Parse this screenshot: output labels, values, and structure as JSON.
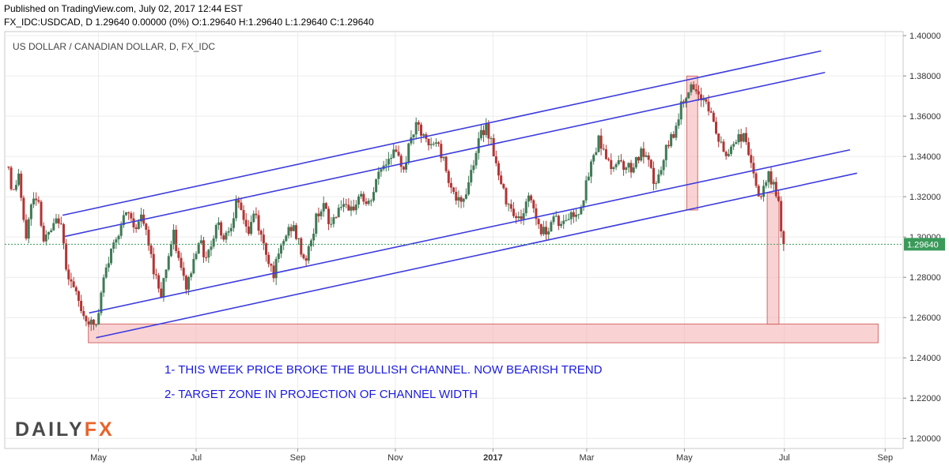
{
  "header": {
    "published": "Published on TradingView.com, July 02, 2017 12:44 EST",
    "quote": "FX_IDC:USDCAD, D  1.29640 0.00000 (0%) O:1.29640 H:1.29640 L:1.29640 C:1.29640"
  },
  "logo": {
    "part1": "DAILY",
    "part2": "FX"
  },
  "colors": {
    "bull": "#3f7a56",
    "bear": "#b23535",
    "channel": "#3d3ce0",
    "zone_fill": "#f5b5b5",
    "zone_stroke": "#d46a6a",
    "annotation": "#1a1adf",
    "last_price_bg": "#3a9a5a",
    "price_line": "#3a9a5a"
  },
  "chart_data": {
    "type": "candlestick",
    "title": "US DOLLAR / CANADIAN DOLLAR, D, FX_IDC",
    "ylim": [
      1.195,
      1.402
    ],
    "y_ticks": [
      "1.20000",
      "1.22000",
      "1.24000",
      "1.26000",
      "1.28000",
      "1.30000",
      "1.32000",
      "1.34000",
      "1.36000",
      "1.38000",
      "1.40000"
    ],
    "x_ticks": [
      {
        "label": "May",
        "day": 120
      },
      {
        "label": "Jul",
        "day": 245
      },
      {
        "label": "Sep",
        "day": 375
      },
      {
        "label": "Nov",
        "day": 500
      },
      {
        "label": "2017",
        "day": 625
      },
      {
        "label": "Mar",
        "day": 745
      },
      {
        "label": "May",
        "day": 870
      },
      {
        "label": "Jul",
        "day": 998
      },
      {
        "label": "Sep",
        "day": 1127
      }
    ],
    "last_price": 1.2964,
    "last_price_label": "1.29640",
    "price_anchors": [
      [
        5,
        1.335
      ],
      [
        10,
        1.32
      ],
      [
        18,
        1.332
      ],
      [
        26,
        1.298
      ],
      [
        34,
        1.316
      ],
      [
        42,
        1.322
      ],
      [
        50,
        1.298
      ],
      [
        60,
        1.303
      ],
      [
        70,
        1.31
      ],
      [
        80,
        1.283
      ],
      [
        90,
        1.272
      ],
      [
        100,
        1.262
      ],
      [
        110,
        1.257
      ],
      [
        118,
        1.256
      ],
      [
        126,
        1.278
      ],
      [
        134,
        1.29
      ],
      [
        142,
        1.3
      ],
      [
        150,
        1.307
      ],
      [
        158,
        1.312
      ],
      [
        166,
        1.305
      ],
      [
        176,
        1.31
      ],
      [
        184,
        1.296
      ],
      [
        192,
        1.282
      ],
      [
        200,
        1.272
      ],
      [
        208,
        1.288
      ],
      [
        216,
        1.301
      ],
      [
        224,
        1.286
      ],
      [
        232,
        1.275
      ],
      [
        240,
        1.285
      ],
      [
        248,
        1.3
      ],
      [
        256,
        1.29
      ],
      [
        264,
        1.296
      ],
      [
        272,
        1.308
      ],
      [
        280,
        1.3
      ],
      [
        288,
        1.305
      ],
      [
        296,
        1.316
      ],
      [
        304,
        1.312
      ],
      [
        312,
        1.302
      ],
      [
        320,
        1.313
      ],
      [
        328,
        1.3
      ],
      [
        336,
        1.291
      ],
      [
        344,
        1.282
      ],
      [
        352,
        1.292
      ],
      [
        360,
        1.301
      ],
      [
        368,
        1.306
      ],
      [
        376,
        1.297
      ],
      [
        384,
        1.288
      ],
      [
        392,
        1.297
      ],
      [
        400,
        1.312
      ],
      [
        408,
        1.316
      ],
      [
        416,
        1.305
      ],
      [
        424,
        1.312
      ],
      [
        432,
        1.318
      ],
      [
        440,
        1.31
      ],
      [
        448,
        1.316
      ],
      [
        456,
        1.322
      ],
      [
        464,
        1.314
      ],
      [
        472,
        1.322
      ],
      [
        480,
        1.334
      ],
      [
        488,
        1.337
      ],
      [
        496,
        1.343
      ],
      [
        504,
        1.338
      ],
      [
        512,
        1.335
      ],
      [
        520,
        1.35
      ],
      [
        528,
        1.355
      ],
      [
        536,
        1.349
      ],
      [
        544,
        1.344
      ],
      [
        552,
        1.348
      ],
      [
        560,
        1.34
      ],
      [
        568,
        1.33
      ],
      [
        576,
        1.32
      ],
      [
        584,
        1.315
      ],
      [
        592,
        1.325
      ],
      [
        600,
        1.338
      ],
      [
        608,
        1.349
      ],
      [
        616,
        1.356
      ],
      [
        624,
        1.346
      ],
      [
        632,
        1.33
      ],
      [
        640,
        1.32
      ],
      [
        648,
        1.316
      ],
      [
        656,
        1.308
      ],
      [
        664,
        1.312
      ],
      [
        672,
        1.322
      ],
      [
        680,
        1.31
      ],
      [
        688,
        1.302
      ],
      [
        696,
        1.305
      ],
      [
        704,
        1.312
      ],
      [
        712,
        1.305
      ],
      [
        720,
        1.31
      ],
      [
        728,
        1.311
      ],
      [
        736,
        1.314
      ],
      [
        744,
        1.325
      ],
      [
        752,
        1.338
      ],
      [
        760,
        1.349
      ],
      [
        768,
        1.343
      ],
      [
        776,
        1.332
      ],
      [
        784,
        1.34
      ],
      [
        792,
        1.336
      ],
      [
        800,
        1.334
      ],
      [
        808,
        1.338
      ],
      [
        816,
        1.342
      ],
      [
        824,
        1.336
      ],
      [
        832,
        1.326
      ],
      [
        840,
        1.332
      ],
      [
        848,
        1.345
      ],
      [
        856,
        1.352
      ],
      [
        864,
        1.362
      ],
      [
        870,
        1.37
      ],
      [
        876,
        1.374
      ],
      [
        882,
        1.372
      ],
      [
        888,
        1.368
      ],
      [
        894,
        1.37
      ],
      [
        900,
        1.366
      ],
      [
        906,
        1.358
      ],
      [
        912,
        1.35
      ],
      [
        918,
        1.344
      ],
      [
        924,
        1.34
      ],
      [
        932,
        1.347
      ],
      [
        940,
        1.35
      ],
      [
        948,
        1.349
      ],
      [
        954,
        1.34
      ],
      [
        960,
        1.326
      ],
      [
        966,
        1.32
      ],
      [
        972,
        1.323
      ],
      [
        978,
        1.33
      ],
      [
        984,
        1.326
      ],
      [
        990,
        1.32
      ],
      [
        994,
        1.3
      ],
      [
        998,
        1.2964
      ]
    ],
    "channel_lines": [
      {
        "name": "outer-upper",
        "from": [
          74,
          1.3108
        ],
        "to": [
          1045,
          1.3924
        ]
      },
      {
        "name": "inner-upper",
        "from": [
          77,
          1.3003
        ],
        "to": [
          1050,
          1.3817
        ]
      },
      {
        "name": "inner-lower",
        "from": [
          108,
          1.2623
        ],
        "to": [
          1082,
          1.3433
        ]
      },
      {
        "name": "outer-lower",
        "from": [
          117,
          1.25
        ],
        "to": [
          1091,
          1.3317
        ]
      }
    ],
    "zones": [
      {
        "name": "target-zone",
        "day1": 107,
        "day2": 1118,
        "y1": 1.2568,
        "y2": 1.2475
      },
      {
        "name": "channel-width-top",
        "day1": 873,
        "day2": 887,
        "y1": 1.3799,
        "y2": 1.3134
      },
      {
        "name": "channel-width-projection",
        "day1": 976,
        "day2": 991,
        "y1": 1.3219,
        "y2": 1.2567
      }
    ],
    "annotations": [
      "1- THIS WEEK PRICE BROKE THE BULLISH CHANNEL. NOW BEARISH TREND",
      "2- TARGET ZONE IN PROJECTION OF CHANNEL WIDTH"
    ]
  }
}
